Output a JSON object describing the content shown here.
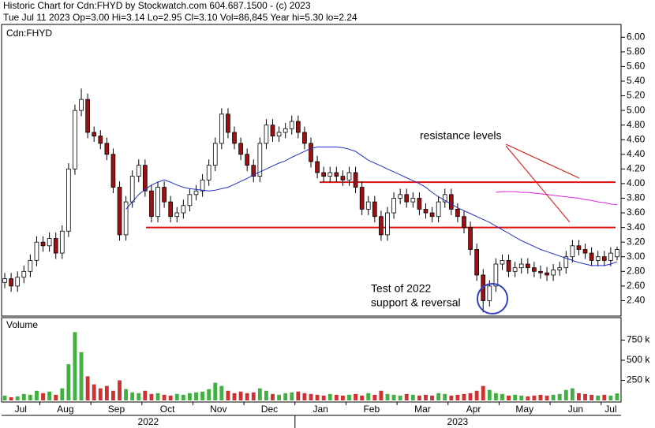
{
  "chart_data": {
    "type": "candlestick",
    "title": "Historic Chart for Cdn:FHYD by Stockwatch.com 604.687.1500 - (c) 2023",
    "subtitle": "Tue Jul 11 2023  Op=3.00  Hi=3.14  Lo=2.95  Cl=3.10  Vol=86,845  Year hi=5.30  lo=2.24",
    "symbol_label": "Cdn:FHYD",
    "categories": [
      "Jul",
      null,
      null,
      null,
      null,
      null,
      "Aug",
      null,
      null,
      null,
      null,
      null,
      null,
      null,
      "Sep",
      null,
      null,
      null,
      null,
      null,
      null,
      null,
      "Oct",
      null,
      null,
      null,
      null,
      null,
      null,
      null,
      "Nov",
      null,
      null,
      null,
      null,
      null,
      null,
      null,
      "Dec",
      null,
      null,
      null,
      null,
      null,
      null,
      null,
      "Jan",
      null,
      null,
      null,
      null,
      null,
      null,
      null,
      "Feb",
      null,
      null,
      null,
      null,
      null,
      null,
      null,
      "Mar",
      null,
      null,
      null,
      null,
      null,
      null,
      null,
      "Apr",
      null,
      null,
      null,
      null,
      null,
      null,
      null,
      "May",
      null,
      null,
      null,
      null,
      null,
      null,
      null,
      "Jun",
      null,
      null,
      null,
      null,
      null,
      null,
      null,
      "Jul",
      null,
      null
    ],
    "years": [
      "2022",
      "2023"
    ],
    "open": [
      2.65,
      2.7,
      2.6,
      2.72,
      2.8,
      2.95,
      3.2,
      3.15,
      3.25,
      3.05,
      3.35,
      4.2,
      5.0,
      5.15,
      4.7,
      4.65,
      4.55,
      4.4,
      3.95,
      3.3,
      3.75,
      4.1,
      4.25,
      3.9,
      3.55,
      3.95,
      3.75,
      3.55,
      3.6,
      3.7,
      3.85,
      3.9,
      4.05,
      4.25,
      4.55,
      4.95,
      4.7,
      4.55,
      4.4,
      4.25,
      4.1,
      4.55,
      4.8,
      4.65,
      4.7,
      4.75,
      4.85,
      4.7,
      4.55,
      4.3,
      4.15,
      4.1,
      4.15,
      4.1,
      4.05,
      4.15,
      3.95,
      3.65,
      3.75,
      3.55,
      3.3,
      3.6,
      3.8,
      3.85,
      3.75,
      3.8,
      3.65,
      3.6,
      3.55,
      3.75,
      3.85,
      3.65,
      3.55,
      3.4,
      3.1,
      2.75,
      2.4,
      2.6,
      2.9,
      2.95,
      2.8,
      2.85,
      2.9,
      2.85,
      2.8,
      2.78,
      2.75,
      2.82,
      2.85,
      3.0,
      3.15,
      3.1,
      3.05,
      2.95,
      3.0,
      2.95,
      3.0
    ],
    "high": [
      2.78,
      2.78,
      2.8,
      2.88,
      3.03,
      3.28,
      3.28,
      3.33,
      3.33,
      3.43,
      4.28,
      5.08,
      5.3,
      5.23,
      4.78,
      4.73,
      4.63,
      4.48,
      4.03,
      3.83,
      4.18,
      4.33,
      4.33,
      3.98,
      4.03,
      4.03,
      3.83,
      3.68,
      3.78,
      3.93,
      3.98,
      4.13,
      4.33,
      4.63,
      5.03,
      5.03,
      4.78,
      4.63,
      4.48,
      4.33,
      4.63,
      4.88,
      4.88,
      4.78,
      4.83,
      4.93,
      4.93,
      4.78,
      4.63,
      4.38,
      4.23,
      4.23,
      4.23,
      4.18,
      4.23,
      4.23,
      4.03,
      3.83,
      3.83,
      3.63,
      3.68,
      3.88,
      3.93,
      3.93,
      3.88,
      3.88,
      3.73,
      3.68,
      3.83,
      3.93,
      3.93,
      3.73,
      3.63,
      3.48,
      3.18,
      2.83,
      2.68,
      2.98,
      3.03,
      3.03,
      2.93,
      2.98,
      2.98,
      2.93,
      2.88,
      2.86,
      2.9,
      2.93,
      3.08,
      3.23,
      3.23,
      3.18,
      3.13,
      3.08,
      3.08,
      3.13,
      3.14
    ],
    "low": [
      2.57,
      2.52,
      2.52,
      2.64,
      2.72,
      2.87,
      3.07,
      3.07,
      2.97,
      2.97,
      3.27,
      4.12,
      4.92,
      4.62,
      4.57,
      4.47,
      4.32,
      3.87,
      3.22,
      3.22,
      3.67,
      4.02,
      3.82,
      3.47,
      3.47,
      3.67,
      3.47,
      3.47,
      3.52,
      3.62,
      3.77,
      3.82,
      3.97,
      4.17,
      4.47,
      4.62,
      4.47,
      4.32,
      4.17,
      4.02,
      4.02,
      4.47,
      4.57,
      4.57,
      4.62,
      4.67,
      4.62,
      4.47,
      4.22,
      4.07,
      4.02,
      4.02,
      4.02,
      3.97,
      3.97,
      3.87,
      3.57,
      3.57,
      3.47,
      3.22,
      3.22,
      3.52,
      3.72,
      3.67,
      3.67,
      3.57,
      3.52,
      3.47,
      3.47,
      3.67,
      3.57,
      3.47,
      3.32,
      3.02,
      2.67,
      2.24,
      2.32,
      2.52,
      2.82,
      2.72,
      2.72,
      2.77,
      2.77,
      2.72,
      2.7,
      2.67,
      2.67,
      2.74,
      2.77,
      2.92,
      3.02,
      2.97,
      2.87,
      2.87,
      2.87,
      2.87,
      2.95
    ],
    "close": [
      2.7,
      2.6,
      2.72,
      2.8,
      2.95,
      3.2,
      3.15,
      3.25,
      3.05,
      3.35,
      4.2,
      5.0,
      5.15,
      4.7,
      4.65,
      4.55,
      4.4,
      3.95,
      3.3,
      3.75,
      4.1,
      4.25,
      3.9,
      3.55,
      3.95,
      3.75,
      3.55,
      3.6,
      3.7,
      3.85,
      3.9,
      4.05,
      4.25,
      4.55,
      4.95,
      4.7,
      4.55,
      4.4,
      4.25,
      4.1,
      4.55,
      4.8,
      4.65,
      4.7,
      4.75,
      4.85,
      4.7,
      4.55,
      4.3,
      4.15,
      4.1,
      4.15,
      4.1,
      4.05,
      4.15,
      3.95,
      3.65,
      3.75,
      3.55,
      3.3,
      3.6,
      3.8,
      3.85,
      3.75,
      3.8,
      3.65,
      3.6,
      3.55,
      3.75,
      3.85,
      3.65,
      3.55,
      3.4,
      3.1,
      2.75,
      2.4,
      2.6,
      2.9,
      2.95,
      2.8,
      2.85,
      2.9,
      2.85,
      2.8,
      2.78,
      2.75,
      2.82,
      2.85,
      3.0,
      3.15,
      3.1,
      3.05,
      2.95,
      3.0,
      2.95,
      3.05,
      3.1
    ],
    "up_color": "#ffffff",
    "down_color": "#a01010",
    "ylim": [
      2.2,
      6.1
    ],
    "yticks": [
      {
        "value": 2.4,
        "label": "2.40"
      },
      {
        "value": 2.6,
        "label": "2.60"
      },
      {
        "value": 2.8,
        "label": "2.80"
      },
      {
        "value": 3,
        "label": "3.00"
      },
      {
        "value": 3.2,
        "label": "3.20"
      },
      {
        "value": 3.4,
        "label": "3.40"
      },
      {
        "value": 3.6,
        "label": "3.60"
      },
      {
        "value": 3.8,
        "label": "3.80"
      },
      {
        "value": 4,
        "label": "4.00"
      },
      {
        "value": 4.2,
        "label": "4.20"
      },
      {
        "value": 4.4,
        "label": "4.40"
      },
      {
        "value": 4.6,
        "label": "4.60"
      },
      {
        "value": 4.8,
        "label": "4.80"
      },
      {
        "value": 5,
        "label": "5.00"
      },
      {
        "value": 5.2,
        "label": "5.20"
      },
      {
        "value": 5.4,
        "label": "5.40"
      },
      {
        "value": 5.6,
        "label": "5.60"
      },
      {
        "value": 5.8,
        "label": "5.80"
      },
      {
        "value": 6,
        "label": "6.00"
      }
    ],
    "grid": false,
    "moving_averages": [
      {
        "color": "#2030c0",
        "values": [
          null,
          null,
          null,
          null,
          null,
          null,
          null,
          null,
          null,
          null,
          null,
          null,
          null,
          null,
          null,
          null,
          null,
          null,
          null,
          3.65,
          3.75,
          3.85,
          3.92,
          3.98,
          4.02,
          4.05,
          4.02,
          3.98,
          3.95,
          3.93,
          3.92,
          3.91,
          3.9,
          3.91,
          3.93,
          3.95,
          3.99,
          4.03,
          4.07,
          4.12,
          4.16,
          4.2,
          4.24,
          4.28,
          4.31,
          4.36,
          4.4,
          4.44,
          4.48,
          4.5,
          4.5,
          4.5,
          4.5,
          4.49,
          4.47,
          4.44,
          4.38,
          4.32,
          4.28,
          4.24,
          4.2,
          4.16,
          4.12,
          4.08,
          4.04,
          4.0,
          3.95,
          3.88,
          3.82,
          3.77,
          3.72,
          3.67,
          3.63,
          3.59,
          3.55,
          3.51,
          3.47,
          3.42,
          3.37,
          3.32,
          3.27,
          3.22,
          3.18,
          3.14,
          3.1,
          3.07,
          3.04,
          3.01,
          2.98,
          2.95,
          2.92,
          2.9,
          2.88,
          2.88,
          2.88,
          2.9,
          2.93
        ]
      },
      {
        "color": "#e020e0",
        "values": [
          null,
          null,
          null,
          null,
          null,
          null,
          null,
          null,
          null,
          null,
          null,
          null,
          null,
          null,
          null,
          null,
          null,
          null,
          null,
          null,
          null,
          null,
          null,
          null,
          null,
          null,
          null,
          null,
          null,
          null,
          null,
          null,
          null,
          null,
          null,
          null,
          null,
          null,
          null,
          null,
          null,
          null,
          null,
          null,
          null,
          null,
          null,
          null,
          null,
          null,
          null,
          null,
          null,
          null,
          null,
          null,
          null,
          null,
          null,
          null,
          null,
          null,
          null,
          null,
          null,
          null,
          null,
          null,
          null,
          null,
          null,
          null,
          null,
          null,
          null,
          null,
          null,
          3.88,
          3.89,
          3.89,
          3.89,
          3.88,
          3.88,
          3.87,
          3.86,
          3.85,
          3.84,
          3.83,
          3.82,
          3.81,
          3.8,
          3.78,
          3.77,
          3.75,
          3.74,
          3.72,
          3.71
        ]
      }
    ],
    "levels": {
      "color": "#e01010",
      "values": [
        4.02,
        3.4
      ]
    },
    "annotations": [
      {
        "text": "resistance levels",
        "color": "#e01010"
      },
      {
        "text": "Test of 2022",
        "color": "#3b4fc4"
      },
      {
        "text": "support & reversal",
        "color": "#3b4fc4"
      }
    ],
    "volume": {
      "label": "Volume",
      "up_color": "#40b040",
      "down_color": "#d03030",
      "values": [
        60000,
        40000,
        50000,
        80000,
        70000,
        120000,
        90000,
        110000,
        70000,
        150000,
        450000,
        850000,
        600000,
        300000,
        200000,
        150000,
        180000,
        120000,
        250000,
        140000,
        100000,
        90000,
        120000,
        80000,
        90000,
        70000,
        60000,
        80000,
        70000,
        90000,
        100000,
        110000,
        140000,
        220000,
        180000,
        120000,
        90000,
        110000,
        90000,
        100000,
        150000,
        120000,
        80000,
        70000,
        90000,
        100000,
        110000,
        90000,
        80000,
        70000,
        60000,
        80000,
        70000,
        60000,
        70000,
        80000,
        60000,
        90000,
        70000,
        120000,
        80000,
        70000,
        60000,
        80000,
        70000,
        60000,
        70000,
        60000,
        90000,
        80000,
        60000,
        70000,
        80000,
        90000,
        120000,
        180000,
        130000,
        90000,
        80000,
        60000,
        70000,
        60000,
        50000,
        60000,
        70000,
        60000,
        70000,
        80000,
        130000,
        150000,
        90000,
        80000,
        70000,
        60000,
        70000,
        60000,
        86845
      ],
      "ylim": [
        0,
        1030000
      ],
      "yticks": [
        {
          "value": 250000,
          "label": "250 k"
        },
        {
          "value": 500000,
          "label": "500 k"
        },
        {
          "value": 750000,
          "label": "750 k"
        }
      ]
    }
  }
}
